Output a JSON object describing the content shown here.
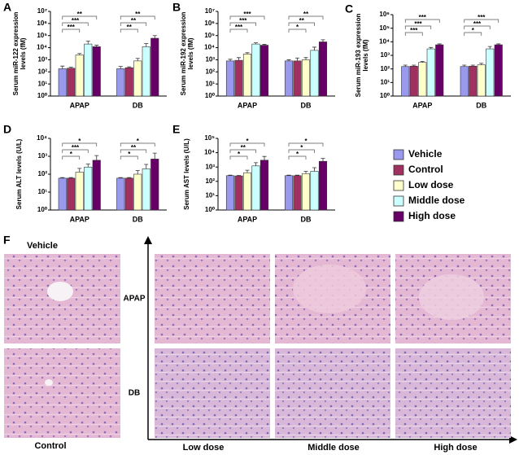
{
  "chart_data": [
    {
      "type": "bar",
      "panel": "A",
      "ylabel": [
        "Serum miR-122 expression",
        "levels (fM)"
      ],
      "log_scale": true,
      "categories": [
        "APAP",
        "DB"
      ],
      "ylim": [
        1,
        10000000
      ],
      "yticks": [
        {
          "value": 1,
          "label": "10⁰"
        },
        {
          "value": 10,
          "label": "10¹"
        },
        {
          "value": 100,
          "label": "10²"
        },
        {
          "value": 1000,
          "label": "10³"
        },
        {
          "value": 10000,
          "label": "10⁴"
        },
        {
          "value": 100000,
          "label": "10⁵"
        },
        {
          "value": 1000000,
          "label": "10⁶"
        },
        {
          "value": 10000000,
          "label": "10⁷"
        }
      ],
      "series": [
        {
          "name": "Vehicle",
          "color": "#9999ee",
          "values": [
            180,
            180
          ],
          "errors": [
            120,
            100
          ]
        },
        {
          "name": "Control",
          "color": "#a0305f",
          "values": [
            200,
            220
          ],
          "errors": [
            40,
            40
          ]
        },
        {
          "name": "Low dose",
          "color": "#ffffcc",
          "values": [
            2500,
            800
          ],
          "errors": [
            800,
            500
          ]
        },
        {
          "name": "Middle dose",
          "color": "#ccffff",
          "values": [
            20000,
            12000
          ],
          "errors": [
            15000,
            10000
          ]
        },
        {
          "name": "High dose",
          "color": "#660066",
          "values": [
            12000,
            60000
          ],
          "errors": [
            4000,
            40000
          ]
        }
      ],
      "significance": [
        [
          "***",
          "***",
          "**"
        ],
        [
          "**",
          "**",
          "**"
        ]
      ]
    },
    {
      "type": "bar",
      "panel": "B",
      "ylabel": [
        "Serum miR-192 expression",
        "levels (fM)"
      ],
      "log_scale": true,
      "categories": [
        "APAP",
        "DB"
      ],
      "ylim": [
        1,
        10000000
      ],
      "yticks": [
        {
          "value": 1,
          "label": "10⁰"
        },
        {
          "value": 10,
          "label": "10¹"
        },
        {
          "value": 100,
          "label": "10²"
        },
        {
          "value": 1000,
          "label": "10³"
        },
        {
          "value": 10000,
          "label": "10⁴"
        },
        {
          "value": 100000,
          "label": "10⁵"
        },
        {
          "value": 1000000,
          "label": "10⁶"
        },
        {
          "value": 10000000,
          "label": "10⁷"
        }
      ],
      "series": [
        {
          "name": "Vehicle",
          "color": "#9999ee",
          "values": [
            800,
            800
          ],
          "errors": [
            300,
            200
          ]
        },
        {
          "name": "Control",
          "color": "#a0305f",
          "values": [
            900,
            800
          ],
          "errors": [
            600,
            600
          ]
        },
        {
          "name": "Low dose",
          "color": "#ffffcc",
          "values": [
            3000,
            1000
          ],
          "errors": [
            800,
            500
          ]
        },
        {
          "name": "Middle dose",
          "color": "#ccffff",
          "values": [
            20000,
            6000
          ],
          "errors": [
            5000,
            5000
          ]
        },
        {
          "name": "High dose",
          "color": "#660066",
          "values": [
            16000,
            30000
          ],
          "errors": [
            3000,
            15000
          ]
        }
      ],
      "significance": [
        [
          "***",
          "***",
          "***"
        ],
        [
          "*",
          "**",
          "**"
        ]
      ]
    },
    {
      "type": "bar",
      "panel": "C",
      "ylabel": [
        "Serum miR-193 expression",
        "levels (fM)"
      ],
      "log_scale": true,
      "categories": [
        "APAP",
        "DB"
      ],
      "ylim": [
        1,
        1000000
      ],
      "yticks": [
        {
          "value": 1,
          "label": "10⁰"
        },
        {
          "value": 10,
          "label": "10¹"
        },
        {
          "value": 100,
          "label": "10²"
        },
        {
          "value": 1000,
          "label": "10³"
        },
        {
          "value": 10000,
          "label": "10⁴"
        },
        {
          "value": 100000,
          "label": "10⁵"
        },
        {
          "value": 1000000,
          "label": "10⁶"
        }
      ],
      "series": [
        {
          "name": "Vehicle",
          "color": "#9999ee",
          "values": [
            150,
            150
          ],
          "errors": [
            40,
            40
          ]
        },
        {
          "name": "Control",
          "color": "#a0305f",
          "values": [
            160,
            160
          ],
          "errors": [
            30,
            30
          ]
        },
        {
          "name": "Low dose",
          "color": "#ffffcc",
          "values": [
            300,
            200
          ],
          "errors": [
            60,
            60
          ]
        },
        {
          "name": "Middle dose",
          "color": "#ccffff",
          "values": [
            3000,
            3000
          ],
          "errors": [
            800,
            1500
          ]
        },
        {
          "name": "High dose",
          "color": "#660066",
          "values": [
            6000,
            6000
          ],
          "errors": [
            1000,
            1000
          ]
        }
      ],
      "significance": [
        [
          "***",
          "***",
          "***"
        ],
        [
          "*",
          "***",
          "***"
        ]
      ]
    },
    {
      "type": "bar",
      "panel": "D",
      "ylabel": [
        "Serum ALT levels (U/L)"
      ],
      "log_scale": true,
      "categories": [
        "APAP",
        "DB"
      ],
      "ylim": [
        1,
        10000
      ],
      "yticks": [
        {
          "value": 1,
          "label": "10⁰"
        },
        {
          "value": 10,
          "label": "10¹"
        },
        {
          "value": 100,
          "label": "10²"
        },
        {
          "value": 1000,
          "label": "10³"
        },
        {
          "value": 10000,
          "label": "10⁴"
        }
      ],
      "series": [
        {
          "name": "Vehicle",
          "color": "#9999ee",
          "values": [
            60,
            60
          ],
          "errors": [
            5,
            5
          ]
        },
        {
          "name": "Control",
          "color": "#a0305f",
          "values": [
            60,
            60
          ],
          "errors": [
            5,
            5
          ]
        },
        {
          "name": "Low dose",
          "color": "#ffffcc",
          "values": [
            130,
            100
          ],
          "errors": [
            80,
            60
          ]
        },
        {
          "name": "Middle dose",
          "color": "#ccffff",
          "values": [
            250,
            200
          ],
          "errors": [
            120,
            150
          ]
        },
        {
          "name": "High dose",
          "color": "#660066",
          "values": [
            600,
            700
          ],
          "errors": [
            500,
            800
          ]
        }
      ],
      "significance": [
        [
          "*",
          "***",
          "*"
        ],
        [
          "*",
          "**",
          "*"
        ]
      ]
    },
    {
      "type": "bar",
      "panel": "E",
      "ylabel": [
        "Serum AST levels (U/L)"
      ],
      "log_scale": true,
      "categories": [
        "APAP",
        "DB"
      ],
      "ylim": [
        1,
        100000
      ],
      "yticks": [
        {
          "value": 1,
          "label": "10⁰"
        },
        {
          "value": 10,
          "label": "10¹"
        },
        {
          "value": 100,
          "label": "10²"
        },
        {
          "value": 1000,
          "label": "10³"
        },
        {
          "value": 10000,
          "label": "10⁴"
        },
        {
          "value": 100000,
          "label": "10⁵"
        }
      ],
      "series": [
        {
          "name": "Vehicle",
          "color": "#9999ee",
          "values": [
            250,
            250
          ],
          "errors": [
            20,
            20
          ]
        },
        {
          "name": "Control",
          "color": "#a0305f",
          "values": [
            240,
            250
          ],
          "errors": [
            20,
            20
          ]
        },
        {
          "name": "Low dose",
          "color": "#ffffcc",
          "values": [
            400,
            350
          ],
          "errors": [
            200,
            150
          ]
        },
        {
          "name": "Middle dose",
          "color": "#ccffff",
          "values": [
            1200,
            500
          ],
          "errors": [
            800,
            400
          ]
        },
        {
          "name": "High dose",
          "color": "#660066",
          "values": [
            3000,
            2500
          ],
          "errors": [
            2500,
            1500
          ]
        }
      ],
      "significance": [
        [
          "*",
          "**",
          "*"
        ],
        [
          "*",
          "*",
          "*"
        ]
      ]
    }
  ],
  "histology": {
    "panel": "F",
    "controls": [
      "Vehicle",
      "Control"
    ],
    "groups": [
      "APAP",
      "DB"
    ],
    "doses": [
      "Low dose",
      "Middle dose",
      "High dose"
    ]
  }
}
